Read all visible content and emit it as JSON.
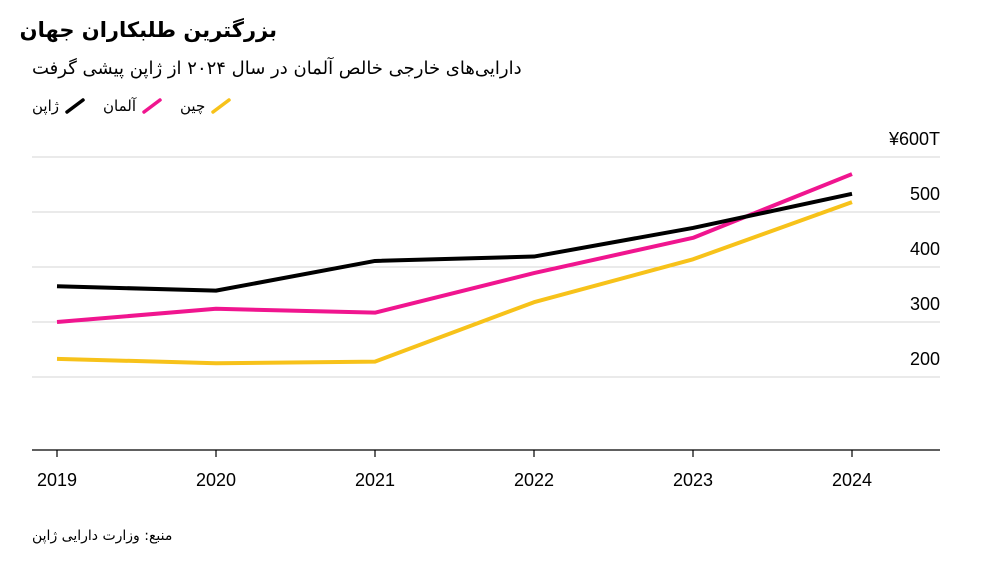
{
  "title": "بزرگترین طلبکاران جهان",
  "subtitle": "دارایی‌های خارجی خالص آلمان در سال ۲۰۲۴ از ژاپن پیشی گرفت",
  "source": "منبع: وزارت دارایی ژاپن",
  "chart_data": {
    "type": "line",
    "x": [
      2019,
      2020,
      2021,
      2022,
      2023,
      2024
    ],
    "ylim": [
      160,
      600
    ],
    "yticks": [
      200,
      300,
      400,
      500,
      600
    ],
    "ytick_labels": [
      "200",
      "300",
      "400",
      "500",
      "¥600T"
    ],
    "legend_position": "top-left",
    "grid": true,
    "series": [
      {
        "name": "ژاپن",
        "color": "#000000",
        "values": [
          365,
          357,
          411,
          419,
          471,
          533
        ]
      },
      {
        "name": "آلمان",
        "color": "#f0158f",
        "values": [
          300,
          324,
          317,
          389,
          453,
          569
        ]
      },
      {
        "name": "چین",
        "color": "#f7c21a",
        "values": [
          233,
          225,
          228,
          336,
          414,
          518
        ]
      }
    ]
  }
}
